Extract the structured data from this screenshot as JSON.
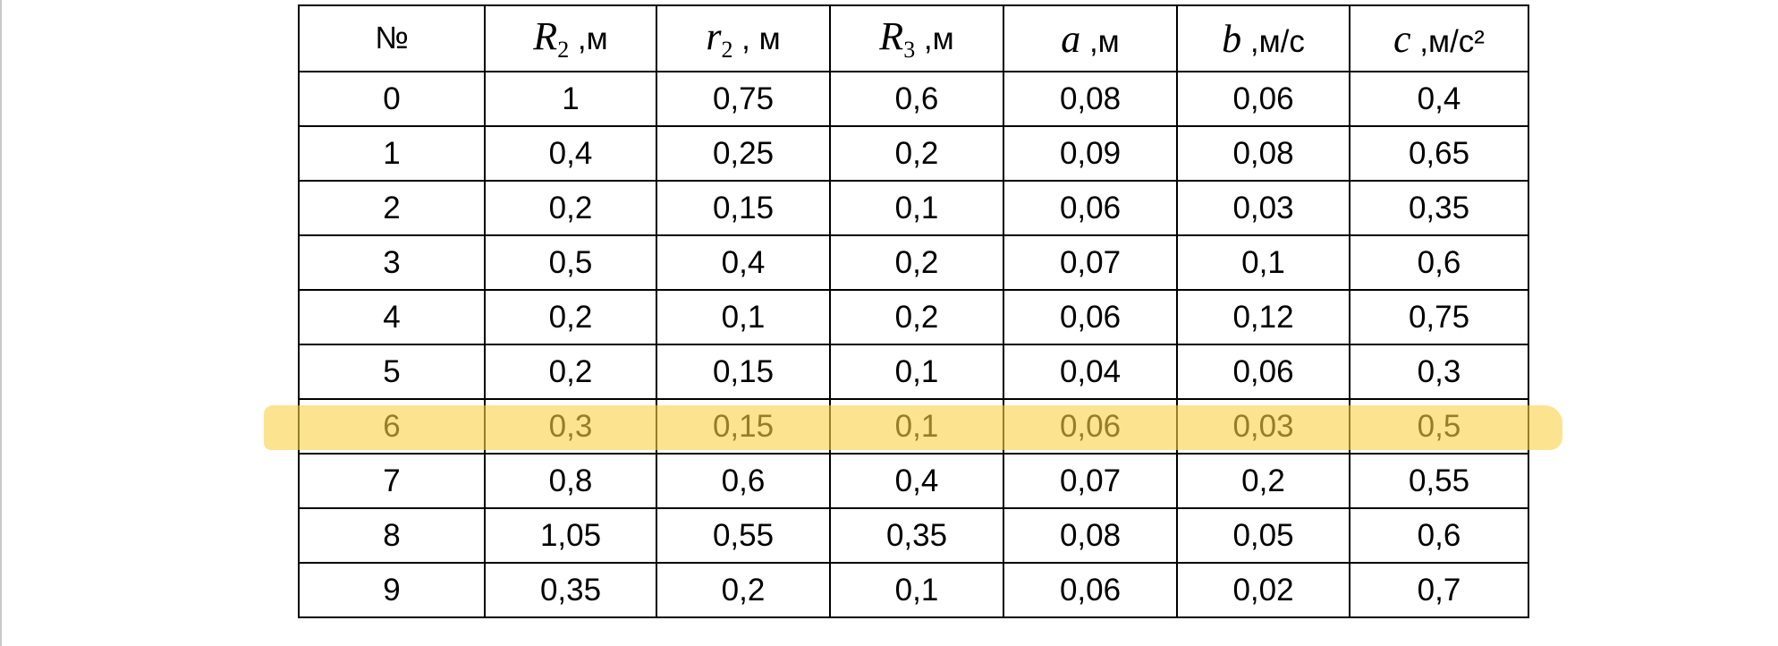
{
  "table": {
    "columns": [
      {
        "text": "№"
      },
      {
        "symbol": "R",
        "sub": "2",
        "unit": " ,м"
      },
      {
        "symbol": "r",
        "sub": "2",
        "unit": " , м"
      },
      {
        "symbol": "R",
        "sub": "3",
        "unit": " ,м"
      },
      {
        "symbol": "a",
        "unit": " ,м"
      },
      {
        "symbol": "b",
        "unit": " ,м/с"
      },
      {
        "symbol": "c",
        "unit": " ,м/с²"
      }
    ],
    "rows": [
      [
        "0",
        "1",
        "0,75",
        "0,6",
        "0,08",
        "0,06",
        "0,4"
      ],
      [
        "1",
        "0,4",
        "0,25",
        "0,2",
        "0,09",
        "0,08",
        "0,65"
      ],
      [
        "2",
        "0,2",
        "0,15",
        "0,1",
        "0,06",
        "0,03",
        "0,35"
      ],
      [
        "3",
        "0,5",
        "0,4",
        "0,2",
        "0,07",
        "0,1",
        "0,6"
      ],
      [
        "4",
        "0,2",
        "0,1",
        "0,2",
        "0,06",
        "0,12",
        "0,75"
      ],
      [
        "5",
        "0,2",
        "0,15",
        "0,1",
        "0,04",
        "0,06",
        "0,3"
      ],
      [
        "6",
        "0,3",
        "0,15",
        "0,1",
        "0,06",
        "0,03",
        "0,5"
      ],
      [
        "7",
        "0,8",
        "0,6",
        "0,4",
        "0,07",
        "0,2",
        "0,55"
      ],
      [
        "8",
        "1,05",
        "0,55",
        "0,35",
        "0,08",
        "0,05",
        "0,6"
      ],
      [
        "9",
        "0,35",
        "0,2",
        "0,1",
        "0,06",
        "0,02",
        "0,7"
      ]
    ],
    "highlighted_row": 6
  }
}
